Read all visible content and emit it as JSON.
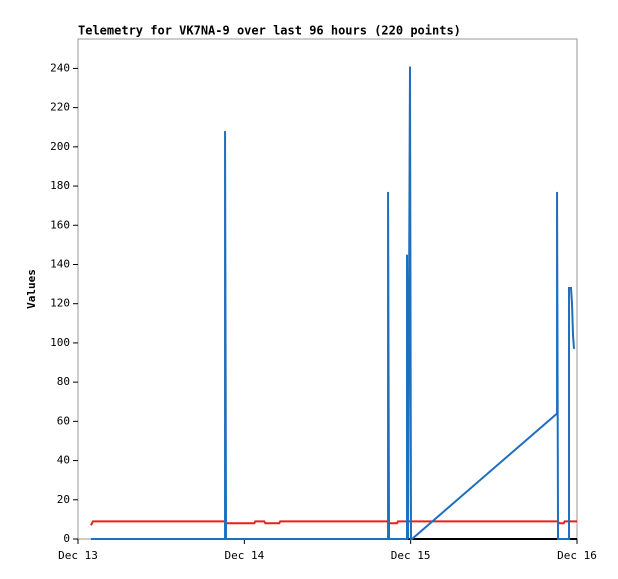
{
  "chart_data": {
    "type": "line",
    "title": "Telemetry for VK7NA-9 over last 96 hours (220 points)",
    "y_label": "Values",
    "xlim": [
      13,
      16
    ],
    "xticks": [
      {
        "value": 13,
        "label": "Dec 13"
      },
      {
        "value": 14,
        "label": "Dec 14"
      },
      {
        "value": 15,
        "label": "Dec 15"
      },
      {
        "value": 16,
        "label": "Dec 16"
      }
    ],
    "ylim": [
      0,
      255
    ],
    "yticks": [
      0,
      20,
      40,
      60,
      80,
      100,
      120,
      140,
      160,
      180,
      200,
      220,
      240
    ],
    "grid": false,
    "series": [
      {
        "color": "#e8201a",
        "x": [
          13.078,
          13.09,
          13.884,
          13.896,
          14.06,
          14.066,
          14.12,
          14.126,
          14.21,
          14.216,
          14.864,
          14.87,
          14.918,
          14.924,
          15.886,
          15.892,
          15.92,
          15.926,
          16.0
        ],
        "values": [
          7,
          9,
          9,
          8,
          8,
          9,
          9,
          8,
          8,
          9,
          9,
          8,
          8,
          9,
          9,
          8,
          8,
          9,
          9
        ]
      },
      {
        "color": "#000000",
        "x": [
          13.078,
          16.0
        ],
        "values": [
          0,
          0
        ]
      },
      {
        "color": "#1f6fbf",
        "x": [
          13.078,
          13.884,
          13.884,
          13.89,
          14.864,
          14.864,
          14.87,
          14.978,
          14.978,
          14.984,
          14.996,
          15.002,
          15.008,
          15.88,
          15.88,
          15.886,
          15.952,
          15.952,
          15.964,
          15.97,
          15.976,
          15.982
        ],
        "values": [
          0,
          0,
          208,
          0,
          0,
          177,
          0,
          0,
          145,
          0,
          241,
          0,
          0,
          64,
          177,
          0,
          0,
          128,
          128,
          120,
          104,
          97
        ]
      }
    ]
  }
}
